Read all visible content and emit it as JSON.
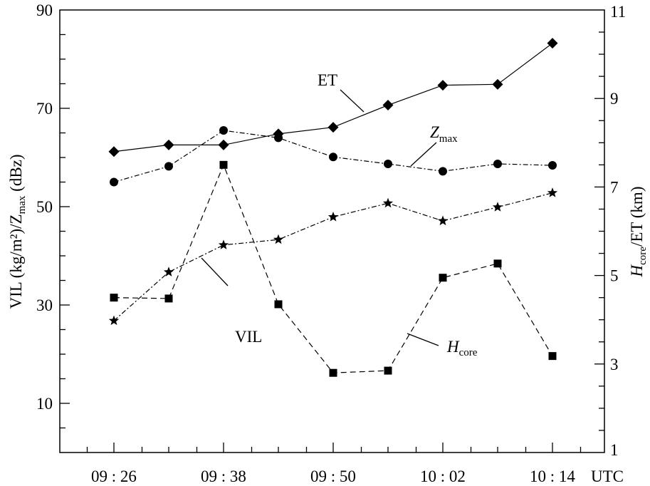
{
  "chart_data": {
    "type": "line",
    "x": [
      "09:26",
      "09:32",
      "09:38",
      "09:44",
      "09:50",
      "09:56",
      "10:02",
      "10:08",
      "10:14"
    ],
    "x_tick_labels": [
      "09:26",
      "09:38",
      "09:50",
      "10:02",
      "10:14"
    ],
    "x_unit": "UTC",
    "left_axis": {
      "label": "VIL (kg/m²)/Z",
      "label_sub": "max",
      "label_suffix": " (dBz)",
      "ylim": [
        0,
        90
      ],
      "ticks": [
        10,
        30,
        50,
        70,
        90
      ],
      "tick_labels": [
        "10",
        "30",
        "50",
        "70",
        "90"
      ]
    },
    "right_axis": {
      "label_prefix": "H",
      "label_sub": "core",
      "label_suffix": "/ET (km)",
      "ylim": [
        1,
        11
      ],
      "ticks": [
        1,
        3,
        5,
        7,
        9,
        11
      ],
      "tick_labels": [
        "1",
        "3",
        "5",
        "7",
        "9",
        "11"
      ]
    },
    "series": [
      {
        "name": "ET",
        "axis": "right",
        "marker": "diamond",
        "dash": "solid",
        "values": [
          7.8,
          7.95,
          7.95,
          8.2,
          8.35,
          8.85,
          9.3,
          9.32,
          10.25
        ]
      },
      {
        "name": "Z",
        "name_sub": "max",
        "axis": "left",
        "marker": "circle",
        "dash": "dashdot",
        "values": [
          55,
          58.2,
          65.5,
          64,
          60.1,
          58.7,
          57.2,
          58.7,
          58.4
        ]
      },
      {
        "name": "VIL",
        "axis": "left",
        "marker": "star",
        "dash": "dashdot",
        "values": [
          26.8,
          36.7,
          42.2,
          43.3,
          47.9,
          50.7,
          47.1,
          49.9,
          52.8
        ]
      },
      {
        "name": "H",
        "name_sub": "core",
        "axis": "right",
        "marker": "square",
        "dash": "dashed",
        "values": [
          4.5,
          4.48,
          7.5,
          4.35,
          2.8,
          2.85,
          4.95,
          5.27,
          3.18
        ]
      }
    ]
  }
}
